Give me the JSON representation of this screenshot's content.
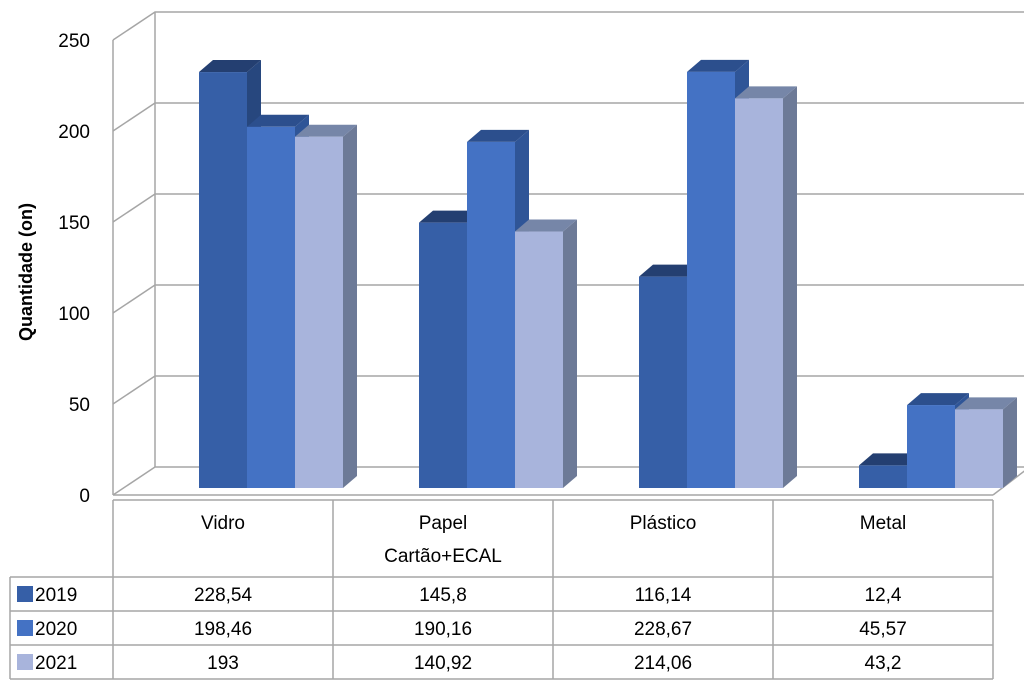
{
  "chart_data": {
    "type": "bar",
    "title": "",
    "xlabel": "",
    "ylabel": "Quantidade (on)",
    "ylim": [
      0,
      250
    ],
    "yticks": [
      "0",
      "50",
      "100",
      "150",
      "200",
      "250"
    ],
    "grid": true,
    "legend": "data-table-left",
    "categories": [
      "Vidro",
      "Papel\nCartão+ECAL",
      "Plástico",
      "Metal"
    ],
    "series": [
      {
        "name": "2019",
        "values": [
          228.54,
          145.8,
          116.14,
          12.4
        ],
        "labels": [
          "228,54",
          "145,8",
          "116,14",
          "12,4"
        ],
        "color": "#365fa7",
        "top": "#243f71",
        "side": "#27477e"
      },
      {
        "name": "2020",
        "values": [
          198.46,
          190.16,
          228.67,
          45.57
        ],
        "labels": [
          "198,46",
          "190,16",
          "228,67",
          "45,57"
        ],
        "color": "#4472c4",
        "top": "#2c4f8d",
        "side": "#2f5597"
      },
      {
        "name": "2021",
        "values": [
          193,
          140.92,
          214.06,
          43.2
        ],
        "labels": [
          "193",
          "140,92",
          "214,06",
          "43,2"
        ],
        "color": "#a8b4dc",
        "top": "#7686a8",
        "side": "#6d7a97"
      }
    ]
  }
}
